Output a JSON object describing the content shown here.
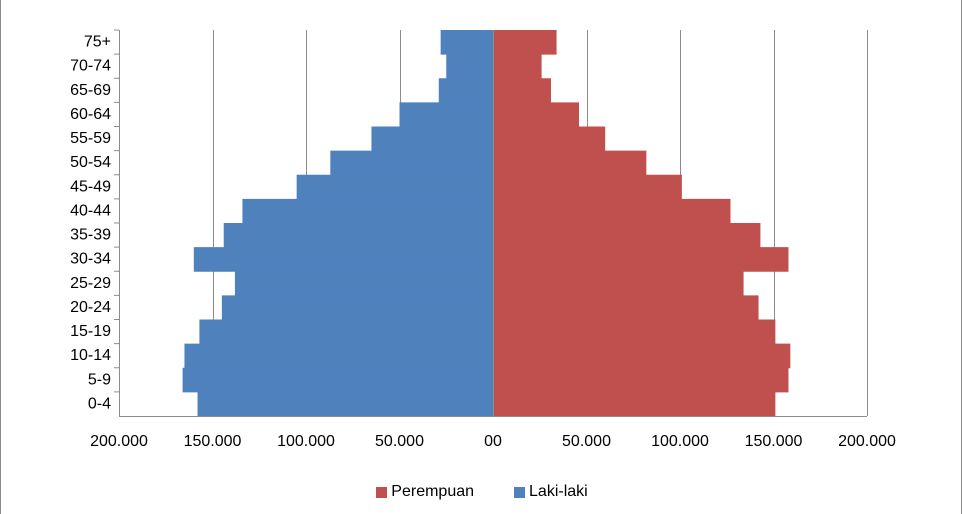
{
  "chart_data": {
    "type": "bar",
    "orientation": "horizontal",
    "title": "",
    "categories": [
      "0-4",
      "5-9",
      "10-14",
      "15-19",
      "20-24",
      "25-29",
      "30-34",
      "35-39",
      "40-44",
      "45-49",
      "50-54",
      "55-59",
      "60-64",
      "65-69",
      "70-74",
      "75+"
    ],
    "series": [
      {
        "name": "Perempuan",
        "color": "#c0504d",
        "side": "right",
        "values": [
          151000,
          158000,
          159000,
          151000,
          142000,
          134000,
          158000,
          143000,
          127000,
          101000,
          82000,
          60000,
          46000,
          31000,
          26000,
          34000
        ]
      },
      {
        "name": "Laki-laki",
        "color": "#4f81bd",
        "side": "left",
        "values": [
          158000,
          166000,
          165000,
          157000,
          145000,
          138000,
          160000,
          144000,
          134000,
          105000,
          87000,
          65000,
          50000,
          29000,
          25000,
          28000
        ]
      }
    ],
    "xlim": [
      -200000,
      200000
    ],
    "x_ticks": [
      -200000,
      -150000,
      -100000,
      -50000,
      0,
      50000,
      100000,
      150000,
      200000
    ],
    "x_tick_labels": [
      "200.000",
      "150.000",
      "100.000",
      "50.000",
      "00",
      "50.000",
      "100.000",
      "150.000",
      "200.000"
    ],
    "grid": true,
    "legend_position": "bottom"
  }
}
